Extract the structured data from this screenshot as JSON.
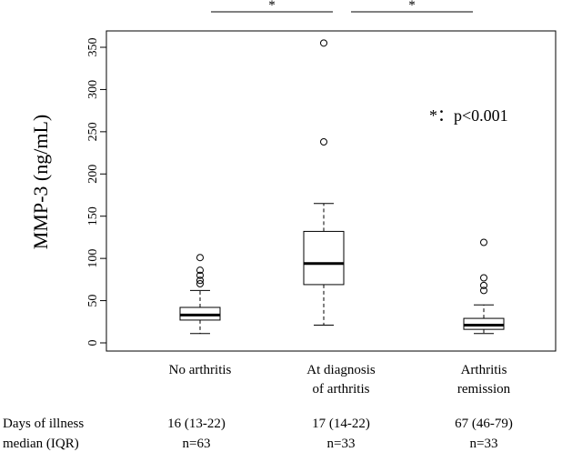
{
  "chart_data": {
    "type": "box",
    "ylabel": "MMP-3 (ng/mL)",
    "ylim": [
      0,
      360
    ],
    "yticks": [
      0,
      50,
      100,
      150,
      200,
      250,
      300,
      350
    ],
    "categories": [
      {
        "line1": "No arthritis",
        "line2": ""
      },
      {
        "line1": "At diagnosis",
        "line2": "of arthritis"
      },
      {
        "line1": "Arthritis",
        "line2": "remission"
      }
    ],
    "boxes": [
      {
        "whisker_low": 11,
        "q1": 27,
        "median": 33,
        "q3": 42,
        "whisker_high": 62,
        "outliers": [
          70,
          74,
          80,
          86,
          101
        ]
      },
      {
        "whisker_low": 21,
        "q1": 69,
        "median": 94,
        "q3": 132,
        "whisker_high": 165,
        "outliers": [
          238,
          355
        ]
      },
      {
        "whisker_low": 11,
        "q1": 16,
        "median": 21,
        "q3": 29,
        "whisker_high": 45,
        "outliers": [
          62,
          68,
          77,
          119
        ]
      }
    ],
    "significance": [
      {
        "from": 0,
        "to": 1,
        "label": "*"
      },
      {
        "from": 1,
        "to": 2,
        "label": "*"
      }
    ],
    "annotation": "*：p<0.001",
    "row_labels": {
      "line1": "Days of illness",
      "line2": "median (IQR)"
    },
    "group_info": [
      {
        "days": "16 (13-22)",
        "n": "n=63"
      },
      {
        "days": "17 (14-22)",
        "n": "n=33"
      },
      {
        "days": "67 (46-79)",
        "n": "n=33"
      }
    ]
  }
}
